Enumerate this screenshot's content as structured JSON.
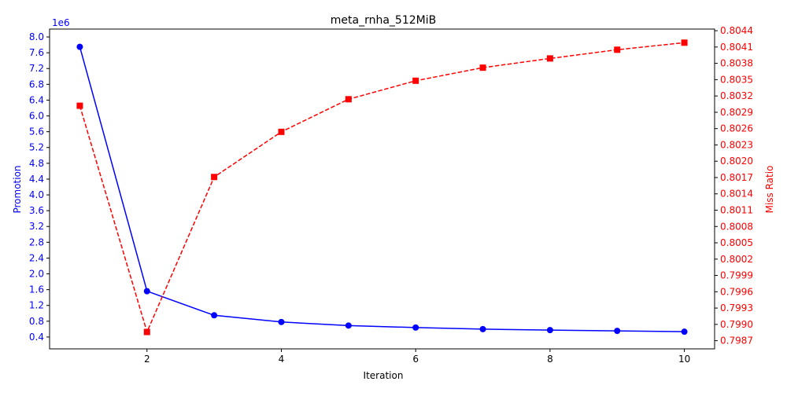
{
  "chart_data": {
    "type": "line",
    "title": "meta_rnha_512MiB",
    "xlabel": "Iteration",
    "x_ticks": [
      2,
      4,
      6,
      8,
      10
    ],
    "xlim": [
      0.55,
      10.45
    ],
    "y_left": {
      "label": "Promotion",
      "offset_label": "1e6",
      "unit_scale": 1000000,
      "ylim": [
        0.1,
        8.2
      ],
      "ticks": [
        "0.4",
        "0.8",
        "1.2",
        "1.6",
        "2.0",
        "2.4",
        "2.8",
        "3.2",
        "3.6",
        "4.0",
        "4.4",
        "4.8",
        "5.2",
        "5.6",
        "6.0",
        "6.4",
        "6.8",
        "7.2",
        "7.6",
        "8.0"
      ],
      "color": "#0000ff"
    },
    "y_right": {
      "label": "Miss Ratio",
      "ylim": [
        0.79855,
        0.80443
      ],
      "ticks": [
        "0.7987",
        "0.7990",
        "0.7993",
        "0.7996",
        "0.7999",
        "0.8002",
        "0.8005",
        "0.8008",
        "0.8011",
        "0.8014",
        "0.8017",
        "0.8020",
        "0.8023",
        "0.8026",
        "0.8029",
        "0.8032",
        "0.8035",
        "0.8038",
        "0.8041",
        "0.8044"
      ],
      "color": "#ff0000"
    },
    "series": [
      {
        "axis": "left",
        "style": "solid",
        "marker": "circle",
        "color": "#0000ff",
        "x": [
          1,
          2,
          3,
          4,
          5,
          6,
          7,
          8,
          9,
          10
        ],
        "values": [
          7.75,
          1.56,
          0.95,
          0.78,
          0.69,
          0.64,
          0.6,
          0.575,
          0.555,
          0.535
        ]
      },
      {
        "axis": "right",
        "style": "dashed",
        "marker": "square",
        "color": "#ff0000",
        "x": [
          1,
          2,
          3,
          4,
          5,
          6,
          7,
          8,
          9,
          10
        ],
        "values": [
          0.80302,
          0.79886,
          0.80171,
          0.80254,
          0.80314,
          0.80348,
          0.80372,
          0.80389,
          0.80405,
          0.80418
        ]
      }
    ]
  }
}
